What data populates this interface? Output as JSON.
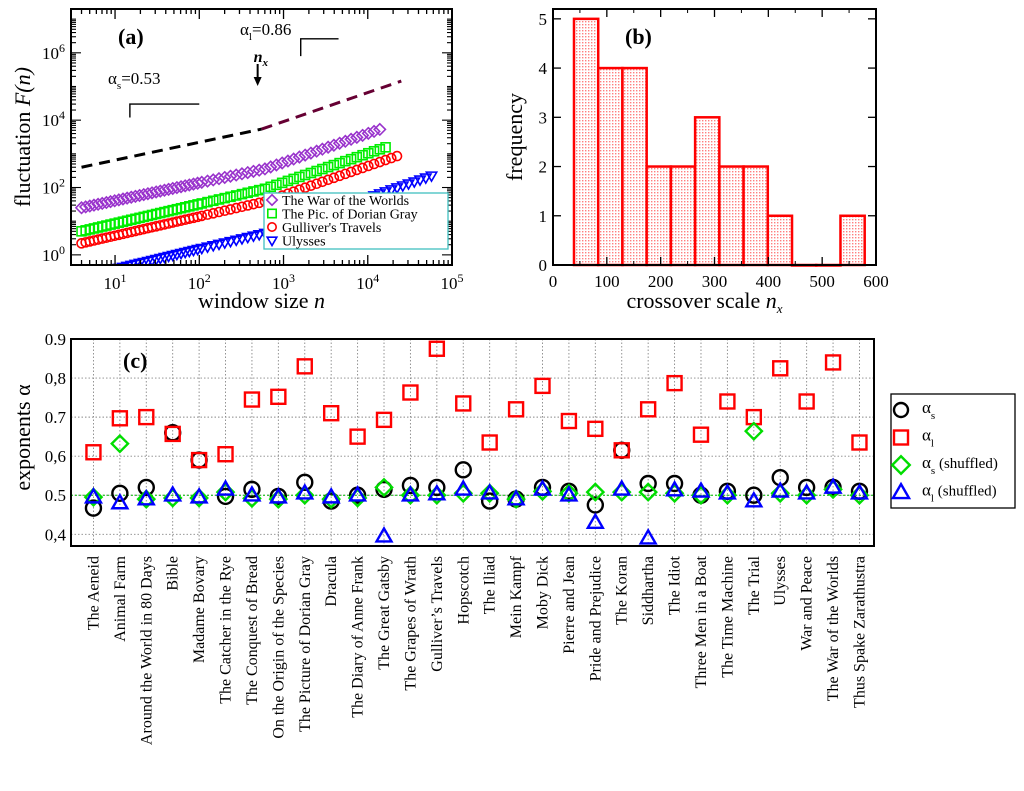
{
  "figure": {
    "panels": [
      "(a)",
      "(b)",
      "(c)"
    ]
  },
  "colors": {
    "war_of_worlds": "#9933cc",
    "dorian_gray": "#00ee00",
    "gulliver": "#ff0000",
    "ulysses": "#0000ff",
    "hist_fill": "#ffb3b3",
    "hist_edge": "#ff0000",
    "alpha_s": "#000000",
    "alpha_l": "#ff0000",
    "alpha_s_shuffled": "#00dd00",
    "alpha_l_shuffled": "#0000ff",
    "fit_short": "#000000",
    "fit_long": "#660033",
    "legend_border_a": "#40c0c0"
  },
  "chart_data": [
    {
      "type": "scatter",
      "panel": "(a)",
      "xscale": "log",
      "yscale": "log",
      "xlabel": "window size  n",
      "ylabel": "fluctuation  F(n)",
      "xlim": [
        3,
        100000
      ],
      "ylim": [
        0.5,
        20000000
      ],
      "xticks": [
        {
          "v": 10,
          "b": "10",
          "e": "1"
        },
        {
          "v": 100,
          "b": "10",
          "e": "2"
        },
        {
          "v": 1000,
          "b": "10",
          "e": "3"
        },
        {
          "v": 10000,
          "b": "10",
          "e": "4"
        },
        {
          "v": 100000,
          "b": "10",
          "e": "5"
        }
      ],
      "yticks": [
        {
          "v": 1,
          "b": "10",
          "e": "0"
        },
        {
          "v": 100,
          "b": "10",
          "e": "2"
        },
        {
          "v": 10000,
          "b": "10",
          "e": "4"
        },
        {
          "v": 1000000,
          "b": "10",
          "e": "6"
        }
      ],
      "legend": {
        "placement": "bottom-right"
      },
      "series": [
        {
          "name": "The War of the Worlds",
          "marker": "diamond",
          "color_key": "war_of_worlds",
          "a": 25,
          "alpha": 0.53,
          "nmax": 15000,
          "x_start": 4
        },
        {
          "name": "The Pic. of Dorian Gray",
          "marker": "square",
          "color_key": "dorian_gray",
          "a": 5,
          "alpha": 0.58,
          "nmax": 18000,
          "x_start": 4
        },
        {
          "name": "Gulliver's Travels",
          "marker": "circle",
          "color_key": "gulliver",
          "a": 2.2,
          "alpha": 0.57,
          "nmax": 24000,
          "x_start": 4
        },
        {
          "name": "Ulysses",
          "marker": "triangle-down",
          "color_key": "ulysses",
          "a": 0.22,
          "alpha": 0.6,
          "nmax": 60000,
          "x_start": 4
        }
      ],
      "annotations": {
        "alpha_s": {
          "label": "α",
          "sub": "s",
          "value": "=0.53"
        },
        "alpha_l": {
          "label": "α",
          "sub": "l",
          "value": "=0.86"
        },
        "crossover": {
          "label": "n",
          "sub": "x",
          "n": 550
        },
        "fit_short": {
          "slope": 0.53,
          "x_from": 4,
          "x_to": 550
        },
        "fit_long": {
          "slope": 0.86,
          "x_from": 550,
          "x_to": 25000
        }
      }
    },
    {
      "type": "bar",
      "panel": "(b)",
      "title": "",
      "xlabel": "crossover scale  n",
      "xlabel_sub": "x",
      "ylabel": "frequency",
      "xlim": [
        0,
        600
      ],
      "ylim": [
        0,
        5.2
      ],
      "xticks": [
        0,
        100,
        200,
        300,
        400,
        500,
        600
      ],
      "yticks": [
        0,
        1,
        2,
        3,
        4,
        5
      ],
      "bins": [
        {
          "from": 39,
          "to": 84,
          "count": 5
        },
        {
          "from": 84,
          "to": 129,
          "count": 4
        },
        {
          "from": 129,
          "to": 174,
          "count": 4
        },
        {
          "from": 174,
          "to": 219,
          "count": 2
        },
        {
          "from": 219,
          "to": 264,
          "count": 2
        },
        {
          "from": 264,
          "to": 309,
          "count": 3
        },
        {
          "from": 309,
          "to": 354,
          "count": 2
        },
        {
          "from": 354,
          "to": 399,
          "count": 2
        },
        {
          "from": 399,
          "to": 444,
          "count": 1
        },
        {
          "from": 444,
          "to": 489,
          "count": 0
        },
        {
          "from": 489,
          "to": 534,
          "count": 0
        },
        {
          "from": 534,
          "to": 579,
          "count": 1
        }
      ]
    },
    {
      "type": "scatter",
      "panel": "(c)",
      "ylabel": "exponents  α",
      "ylim": [
        0.37,
        0.9
      ],
      "yticks": [
        {
          "v": 0.4,
          "label": "0,4"
        },
        {
          "v": 0.5,
          "label": "0.5"
        },
        {
          "v": 0.6,
          "label": "0,6"
        },
        {
          "v": 0.7,
          "label": "0.7"
        },
        {
          "v": 0.8,
          "label": "0,8"
        },
        {
          "v": 0.9,
          "label": "0.9"
        }
      ],
      "grid": true,
      "reference_line": 0.5,
      "legend": {
        "placement": "right-outside"
      },
      "categories": [
        "The Aeneid",
        "Animal Farm",
        "Around the World in 80 Days",
        "Bible",
        "Madame Bovary",
        "The Catcher in the Rye",
        "The Conquest of Bread",
        "On the Origin of the Species",
        "The Picture of Dorian Gray",
        "Dracula",
        "The Diary of Anne Frank",
        "The Great Gatsby",
        "The Grapes of Wrath",
        "Gulliver’s Travels",
        "Hopscotch",
        "The Iliad",
        "Mein Kampf",
        "Moby Dick",
        "Pierre and Jean",
        "Pride and Prejudice",
        "The Koran",
        "Siddhartha",
        "The Idiot",
        "Three Men in a Boat",
        "The Time Machine",
        "The Trial",
        "Ulysses",
        "War and Peace",
        "The War of the Worlds",
        "Thus Spake Zarathustra"
      ],
      "series": [
        {
          "name": "α_s",
          "label": "α",
          "sub": "s",
          "suffix": "",
          "marker": "circle",
          "color_key": "alpha_s",
          "values": [
            0.467,
            0.505,
            0.52,
            0.66,
            0.59,
            0.497,
            0.515,
            0.497,
            0.533,
            0.485,
            0.5,
            0.515,
            0.525,
            0.52,
            0.565,
            0.485,
            0.49,
            0.52,
            0.51,
            0.475,
            0.615,
            0.53,
            0.53,
            0.5,
            0.51,
            0.5,
            0.545,
            0.52,
            0.52,
            0.51
          ]
        },
        {
          "name": "α_l",
          "label": "α",
          "sub": "l",
          "suffix": "",
          "marker": "square",
          "color_key": "alpha_l",
          "values": [
            0.61,
            0.697,
            0.7,
            0.657,
            0.59,
            0.605,
            0.745,
            0.752,
            0.83,
            0.71,
            0.65,
            0.693,
            0.763,
            0.875,
            0.735,
            0.635,
            0.72,
            0.78,
            0.69,
            0.67,
            0.615,
            0.72,
            0.787,
            0.655,
            0.74,
            0.7,
            0.825,
            0.74,
            0.84,
            0.635
          ]
        },
        {
          "name": "α_s (shuffled)",
          "label": "α",
          "sub": "s",
          "suffix": " (shuffled)",
          "marker": "diamond",
          "color_key": "alpha_s_shuffled",
          "values": [
            0.495,
            0.632,
            0.49,
            0.493,
            0.493,
            0.508,
            0.492,
            0.49,
            0.5,
            0.49,
            0.493,
            0.52,
            0.5,
            0.5,
            0.505,
            0.505,
            0.49,
            0.51,
            0.505,
            0.508,
            0.508,
            0.508,
            0.505,
            0.5,
            0.5,
            0.664,
            0.505,
            0.5,
            0.515,
            0.5
          ]
        },
        {
          "name": "α_l (shuffled)",
          "label": "α",
          "sub": "l",
          "suffix": " (shuffled)",
          "marker": "triangle-up",
          "color_key": "alpha_l_shuffled",
          "values": [
            0.495,
            0.48,
            0.49,
            0.5,
            0.495,
            0.515,
            0.5,
            0.495,
            0.505,
            0.495,
            0.5,
            0.395,
            0.5,
            0.503,
            0.515,
            0.505,
            0.49,
            0.515,
            0.5,
            0.43,
            0.515,
            0.39,
            0.513,
            0.51,
            0.505,
            0.485,
            0.51,
            0.505,
            0.52,
            0.505
          ]
        }
      ]
    }
  ]
}
